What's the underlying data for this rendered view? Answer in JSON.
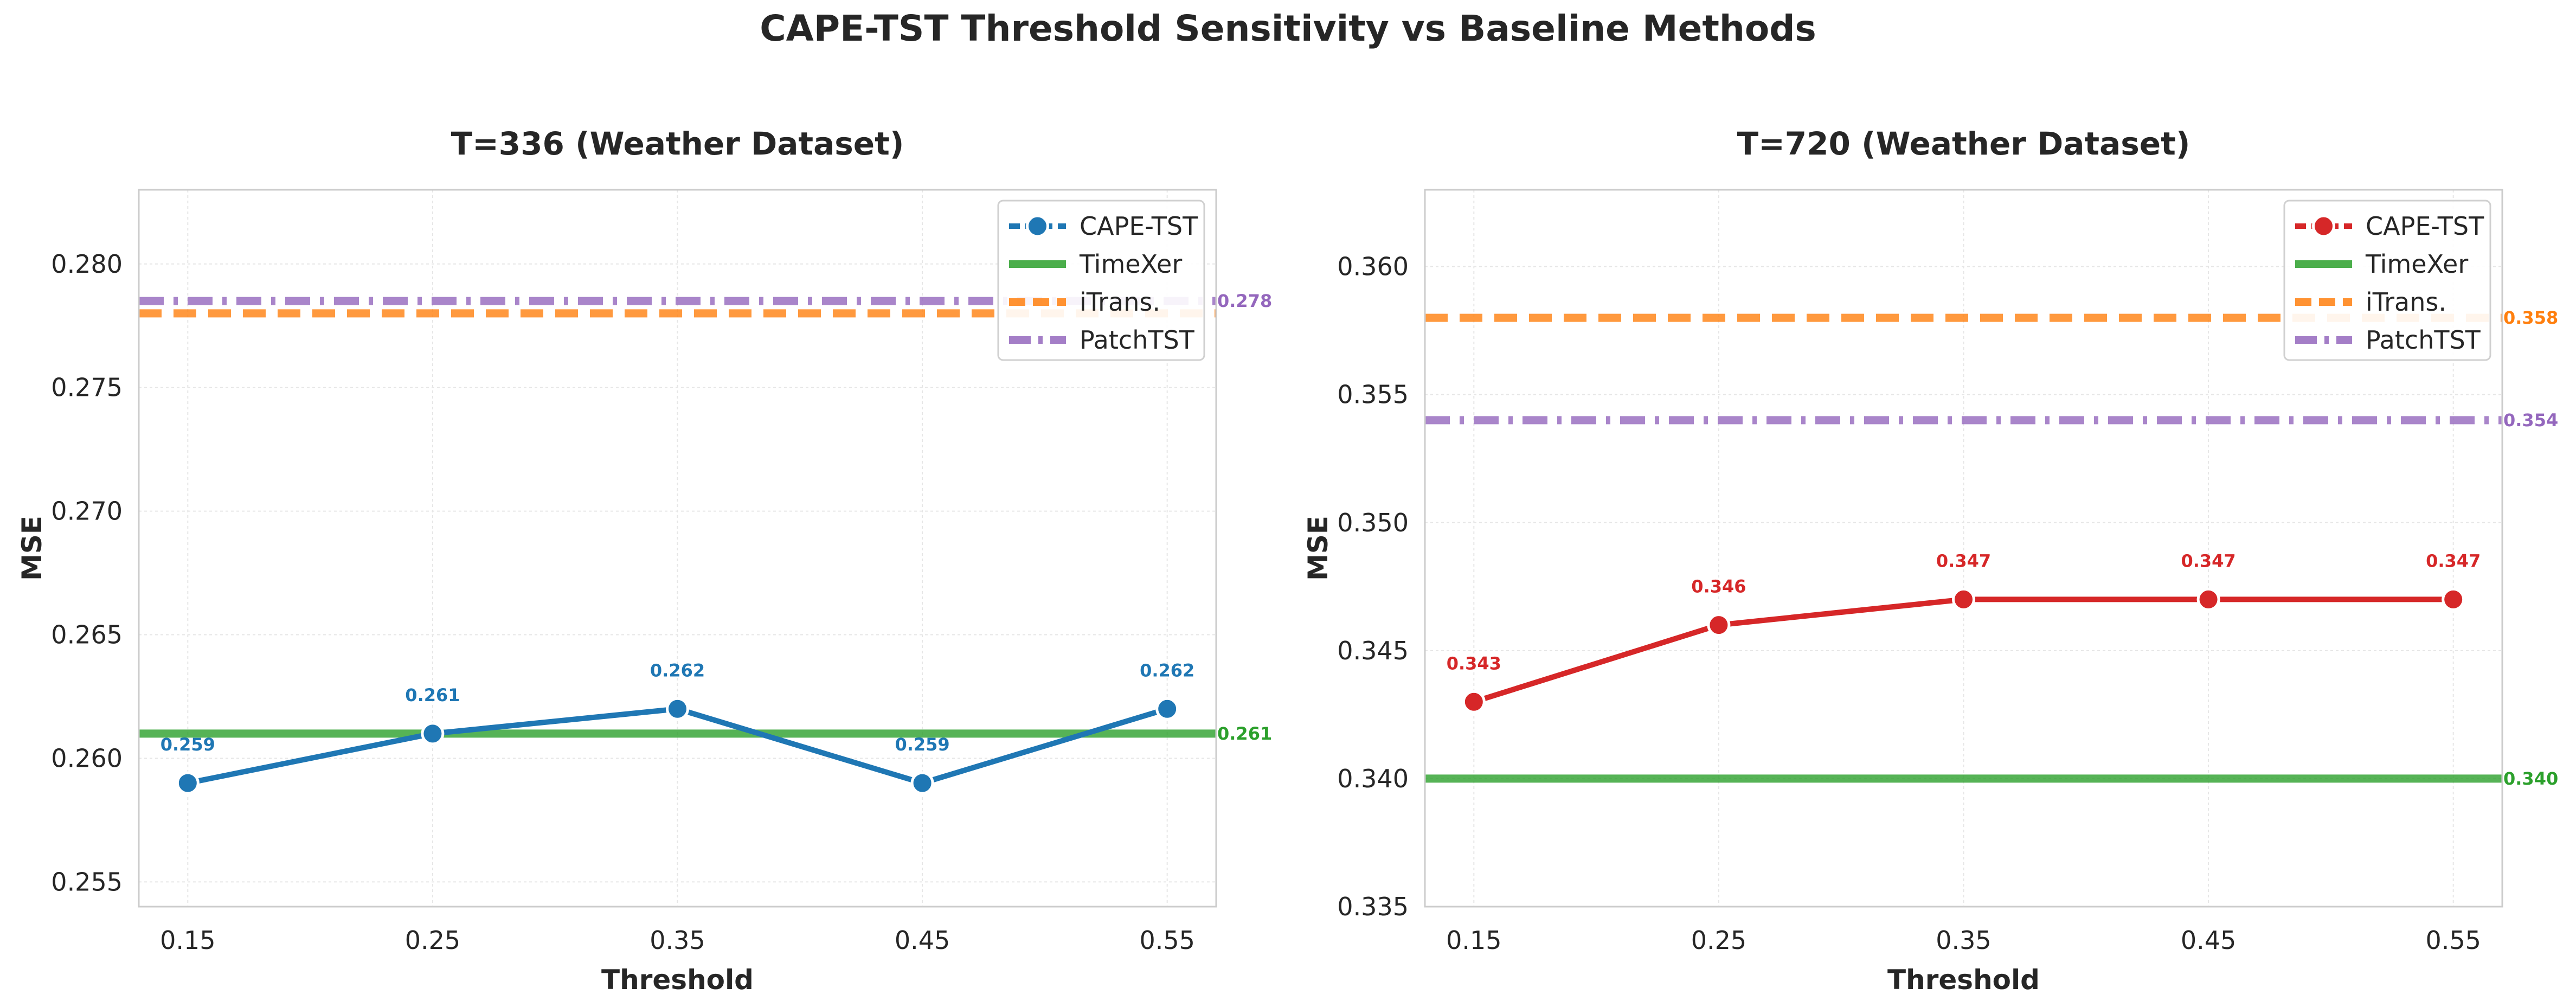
{
  "figure_title": "CAPE-TST Threshold Sensitivity vs Baseline Methods",
  "chart_data": [
    {
      "type": "line",
      "title": "T=336 (Weather Dataset)",
      "xlabel": "Threshold",
      "ylabel": "MSE",
      "categories": [
        "0.15",
        "0.25",
        "0.35",
        "0.45",
        "0.55"
      ],
      "x": [
        0.15,
        0.25,
        0.35,
        0.45,
        0.55
      ],
      "xlim": [
        0.13,
        0.57
      ],
      "ylim": [
        0.254,
        0.283
      ],
      "yticks": [
        0.255,
        0.26,
        0.265,
        0.27,
        0.275,
        0.28
      ],
      "ytick_labels": [
        "0.255",
        "0.260",
        "0.265",
        "0.270",
        "0.275",
        "0.280"
      ],
      "grid": true,
      "legend_position": "top-right",
      "series": [
        {
          "name": "CAPE-TST",
          "values": [
            0.259,
            0.261,
            0.262,
            0.259,
            0.262
          ],
          "labels": [
            "0.259",
            "0.261",
            "0.262",
            "0.259",
            "0.262"
          ],
          "color": "#1f77b4",
          "style": "line-marker"
        }
      ],
      "baselines": [
        {
          "name": "TimeXer",
          "value": 0.261,
          "label": "0.261",
          "color": "#2ca02c",
          "style": "solid"
        },
        {
          "name": "iTrans.",
          "value": 0.278,
          "label": "",
          "color": "#ff7f0e",
          "style": "dashed"
        },
        {
          "name": "PatchTST",
          "value": 0.2785,
          "label": "0.278",
          "color": "#9467bd",
          "style": "dashdot"
        }
      ]
    },
    {
      "type": "line",
      "title": "T=720 (Weather Dataset)",
      "xlabel": "Threshold",
      "ylabel": "MSE",
      "categories": [
        "0.15",
        "0.25",
        "0.35",
        "0.45",
        "0.55"
      ],
      "x": [
        0.15,
        0.25,
        0.35,
        0.45,
        0.55
      ],
      "xlim": [
        0.13,
        0.57
      ],
      "ylim": [
        0.335,
        0.363
      ],
      "yticks": [
        0.335,
        0.34,
        0.345,
        0.35,
        0.355,
        0.36
      ],
      "ytick_labels": [
        "0.335",
        "0.340",
        "0.345",
        "0.350",
        "0.355",
        "0.360"
      ],
      "grid": true,
      "legend_position": "top-right",
      "series": [
        {
          "name": "CAPE-TST",
          "values": [
            0.343,
            0.346,
            0.347,
            0.347,
            0.347
          ],
          "labels": [
            "0.343",
            "0.346",
            "0.347",
            "0.347",
            "0.347"
          ],
          "color": "#d62728",
          "style": "line-marker"
        }
      ],
      "baselines": [
        {
          "name": "TimeXer",
          "value": 0.34,
          "label": "0.340",
          "color": "#2ca02c",
          "style": "solid"
        },
        {
          "name": "iTrans.",
          "value": 0.358,
          "label": "0.358",
          "color": "#ff7f0e",
          "style": "dashed"
        },
        {
          "name": "PatchTST",
          "value": 0.354,
          "label": "0.354",
          "color": "#9467bd",
          "style": "dashdot"
        }
      ]
    }
  ]
}
